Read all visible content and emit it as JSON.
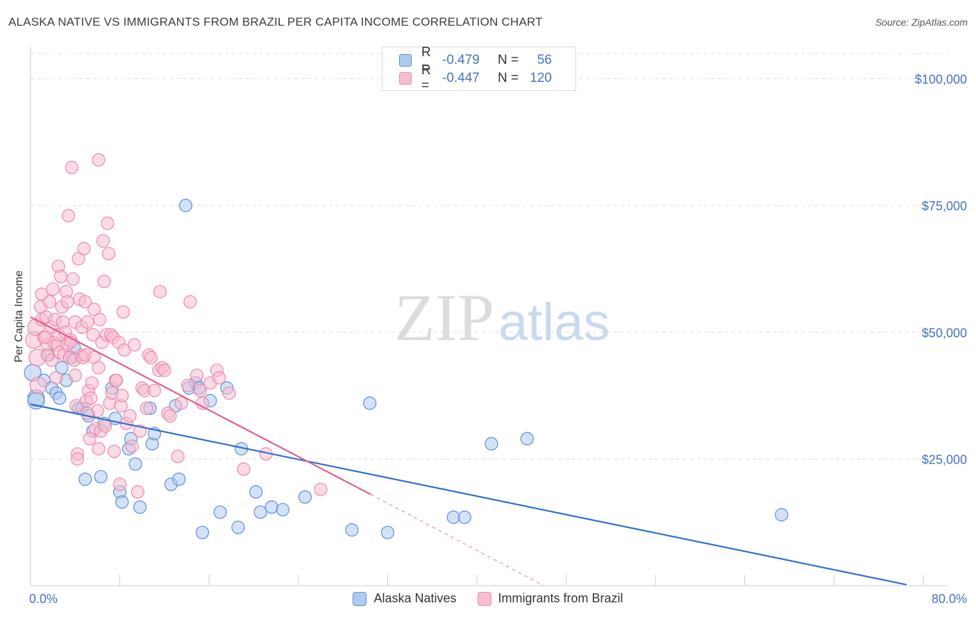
{
  "header": {
    "title": "ALASKA NATIVE VS IMMIGRANTS FROM BRAZIL PER CAPITA INCOME CORRELATION CHART",
    "source": "Source: ZipAtlas.com"
  },
  "watermark": {
    "zip": "ZIP",
    "atlas": "atlas"
  },
  "legend": {
    "rows": [
      {
        "r_label": "R =",
        "r_value": "-0.479",
        "n_label": "N =",
        "n_value": "56"
      },
      {
        "r_label": "R =",
        "r_value": "-0.447",
        "n_label": "N =",
        "n_value": "120"
      }
    ]
  },
  "colors": {
    "alaska_fill": "#aecbf0",
    "alaska_stroke": "#5b8fd6",
    "alaska_line": "#2f6fd0",
    "brazil_fill": "#f7bdd0",
    "brazil_stroke": "#e98aaa",
    "brazil_line": "#e0608a",
    "axis_label": "#4472c4",
    "grid": "#dddddd"
  },
  "chart_data": {
    "type": "scatter",
    "title": "ALASKA NATIVE VS IMMIGRANTS FROM BRAZIL PER CAPITA INCOME CORRELATION CHART",
    "xlabel": "",
    "ylabel": "Per Capita Income",
    "xlim": [
      0,
      80
    ],
    "ylim": [
      0,
      105000
    ],
    "x_tick_labels": [
      "0.0%",
      "80.0%"
    ],
    "y_ticks": [
      25000,
      50000,
      75000,
      100000
    ],
    "y_tick_labels": [
      "$25,000",
      "$50,000",
      "$75,000",
      "$100,000"
    ],
    "grid": true,
    "legend_position": "top-center",
    "series": [
      {
        "name": "Alaska Natives",
        "trend": {
          "x": [
            0,
            78.5
          ],
          "y": [
            35800,
            200
          ]
        },
        "points": [
          [
            0.2,
            42000
          ],
          [
            0.5,
            37000
          ],
          [
            1.2,
            40500
          ],
          [
            1.6,
            45500
          ],
          [
            1.9,
            39000
          ],
          [
            2.3,
            38000
          ],
          [
            2.6,
            37000
          ],
          [
            2.8,
            43000
          ],
          [
            3.2,
            40500
          ],
          [
            3.7,
            45000
          ],
          [
            3.9,
            47000
          ],
          [
            4.3,
            35000
          ],
          [
            4.6,
            35000
          ],
          [
            4.9,
            21000
          ],
          [
            5.2,
            33500
          ],
          [
            5.6,
            30500
          ],
          [
            6.3,
            21500
          ],
          [
            6.6,
            32000
          ],
          [
            7.3,
            39000
          ],
          [
            7.6,
            33000
          ],
          [
            8.0,
            18500
          ],
          [
            8.2,
            16500
          ],
          [
            8.8,
            27000
          ],
          [
            9.0,
            29000
          ],
          [
            9.4,
            24000
          ],
          [
            9.8,
            15500
          ],
          [
            10.7,
            35000
          ],
          [
            10.9,
            28000
          ],
          [
            11.1,
            30000
          ],
          [
            12.6,
            20000
          ],
          [
            13.0,
            35500
          ],
          [
            13.3,
            21000
          ],
          [
            13.9,
            75000
          ],
          [
            14.2,
            39000
          ],
          [
            14.8,
            40000
          ],
          [
            15.1,
            39000
          ],
          [
            15.4,
            10500
          ],
          [
            16.1,
            36500
          ],
          [
            17.0,
            14500
          ],
          [
            17.6,
            39000
          ],
          [
            18.6,
            11500
          ],
          [
            18.9,
            27000
          ],
          [
            20.2,
            18500
          ],
          [
            20.6,
            14500
          ],
          [
            21.6,
            15500
          ],
          [
            22.6,
            15000
          ],
          [
            24.6,
            17500
          ],
          [
            28.8,
            11000
          ],
          [
            30.4,
            36000
          ],
          [
            32.0,
            10500
          ],
          [
            37.9,
            13500
          ],
          [
            38.9,
            13500
          ],
          [
            41.3,
            28000
          ],
          [
            44.5,
            29000
          ],
          [
            67.3,
            14000
          ],
          [
            0.5,
            36500
          ]
        ]
      },
      {
        "name": "Immigrants from Brazil",
        "trend": {
          "x": [
            0,
            30.5
          ],
          "y": [
            53000,
            18000
          ]
        },
        "trend_ext": {
          "x": [
            30.5,
            46.0
          ],
          "y": [
            18000,
            0
          ]
        },
        "points": [
          [
            0.3,
            48500
          ],
          [
            0.5,
            51000
          ],
          [
            0.6,
            45000
          ],
          [
            0.7,
            39500
          ],
          [
            0.9,
            55000
          ],
          [
            1.0,
            57500
          ],
          [
            1.0,
            52500
          ],
          [
            1.2,
            49000
          ],
          [
            1.4,
            53000
          ],
          [
            1.5,
            47500
          ],
          [
            1.5,
            45500
          ],
          [
            1.7,
            56000
          ],
          [
            1.9,
            51000
          ],
          [
            1.9,
            44500
          ],
          [
            2.0,
            58500
          ],
          [
            2.1,
            48000
          ],
          [
            2.2,
            52500
          ],
          [
            2.4,
            47500
          ],
          [
            2.5,
            63000
          ],
          [
            2.5,
            49500
          ],
          [
            2.6,
            46000
          ],
          [
            2.7,
            61000
          ],
          [
            2.8,
            55000
          ],
          [
            2.9,
            52000
          ],
          [
            3.0,
            45500
          ],
          [
            3.1,
            50000
          ],
          [
            3.2,
            58000
          ],
          [
            3.3,
            56000
          ],
          [
            3.3,
            47500
          ],
          [
            3.4,
            73000
          ],
          [
            3.5,
            45000
          ],
          [
            3.6,
            48500
          ],
          [
            3.7,
            82500
          ],
          [
            3.8,
            60500
          ],
          [
            3.9,
            44500
          ],
          [
            4.0,
            52000
          ],
          [
            4.0,
            41500
          ],
          [
            4.1,
            35500
          ],
          [
            4.2,
            26000
          ],
          [
            4.2,
            25000
          ],
          [
            4.3,
            64500
          ],
          [
            4.4,
            56500
          ],
          [
            4.5,
            45500
          ],
          [
            4.6,
            51000
          ],
          [
            4.7,
            45000
          ],
          [
            4.8,
            66500
          ],
          [
            4.9,
            56000
          ],
          [
            4.9,
            45500
          ],
          [
            5.0,
            36500
          ],
          [
            5.1,
            52000
          ],
          [
            5.2,
            38500
          ],
          [
            5.3,
            29000
          ],
          [
            5.4,
            37000
          ],
          [
            5.5,
            40000
          ],
          [
            5.6,
            49500
          ],
          [
            5.7,
            54500
          ],
          [
            5.7,
            45000
          ],
          [
            5.8,
            31000
          ],
          [
            6.0,
            34500
          ],
          [
            6.1,
            84000
          ],
          [
            6.1,
            43000
          ],
          [
            6.1,
            27000
          ],
          [
            6.2,
            52500
          ],
          [
            6.3,
            30500
          ],
          [
            6.4,
            48000
          ],
          [
            6.5,
            68000
          ],
          [
            6.6,
            60000
          ],
          [
            6.8,
            49500
          ],
          [
            6.9,
            71500
          ],
          [
            7.0,
            65500
          ],
          [
            7.1,
            36000
          ],
          [
            7.2,
            49500
          ],
          [
            7.3,
            38000
          ],
          [
            7.4,
            49000
          ],
          [
            7.5,
            26500
          ],
          [
            7.6,
            40500
          ],
          [
            7.7,
            40500
          ],
          [
            7.9,
            48000
          ],
          [
            8.0,
            20000
          ],
          [
            8.1,
            35500
          ],
          [
            8.2,
            37500
          ],
          [
            8.3,
            54000
          ],
          [
            8.4,
            46500
          ],
          [
            8.6,
            32000
          ],
          [
            8.9,
            33500
          ],
          [
            9.1,
            27500
          ],
          [
            9.3,
            47500
          ],
          [
            9.6,
            18500
          ],
          [
            9.8,
            30500
          ],
          [
            10.0,
            39000
          ],
          [
            10.2,
            38500
          ],
          [
            10.4,
            35000
          ],
          [
            10.6,
            45500
          ],
          [
            10.8,
            45000
          ],
          [
            11.1,
            38500
          ],
          [
            11.5,
            42500
          ],
          [
            11.6,
            58000
          ],
          [
            11.8,
            43000
          ],
          [
            12.0,
            42500
          ],
          [
            12.3,
            34000
          ],
          [
            12.5,
            33500
          ],
          [
            13.2,
            25500
          ],
          [
            13.5,
            36000
          ],
          [
            14.1,
            39500
          ],
          [
            14.3,
            56000
          ],
          [
            14.9,
            41500
          ],
          [
            15.2,
            38500
          ],
          [
            15.4,
            36000
          ],
          [
            16.1,
            40000
          ],
          [
            16.7,
            42500
          ],
          [
            16.9,
            41000
          ],
          [
            17.8,
            38000
          ],
          [
            19.1,
            23000
          ],
          [
            21.1,
            26000
          ],
          [
            26.0,
            19000
          ],
          [
            1.3,
            49000
          ],
          [
            2.3,
            41000
          ],
          [
            3.6,
            48000
          ],
          [
            5.1,
            34000
          ],
          [
            6.7,
            31500
          ]
        ]
      }
    ]
  },
  "bottom_legend": [
    {
      "label": "Alaska Natives"
    },
    {
      "label": "Immigrants from Brazil"
    }
  ]
}
